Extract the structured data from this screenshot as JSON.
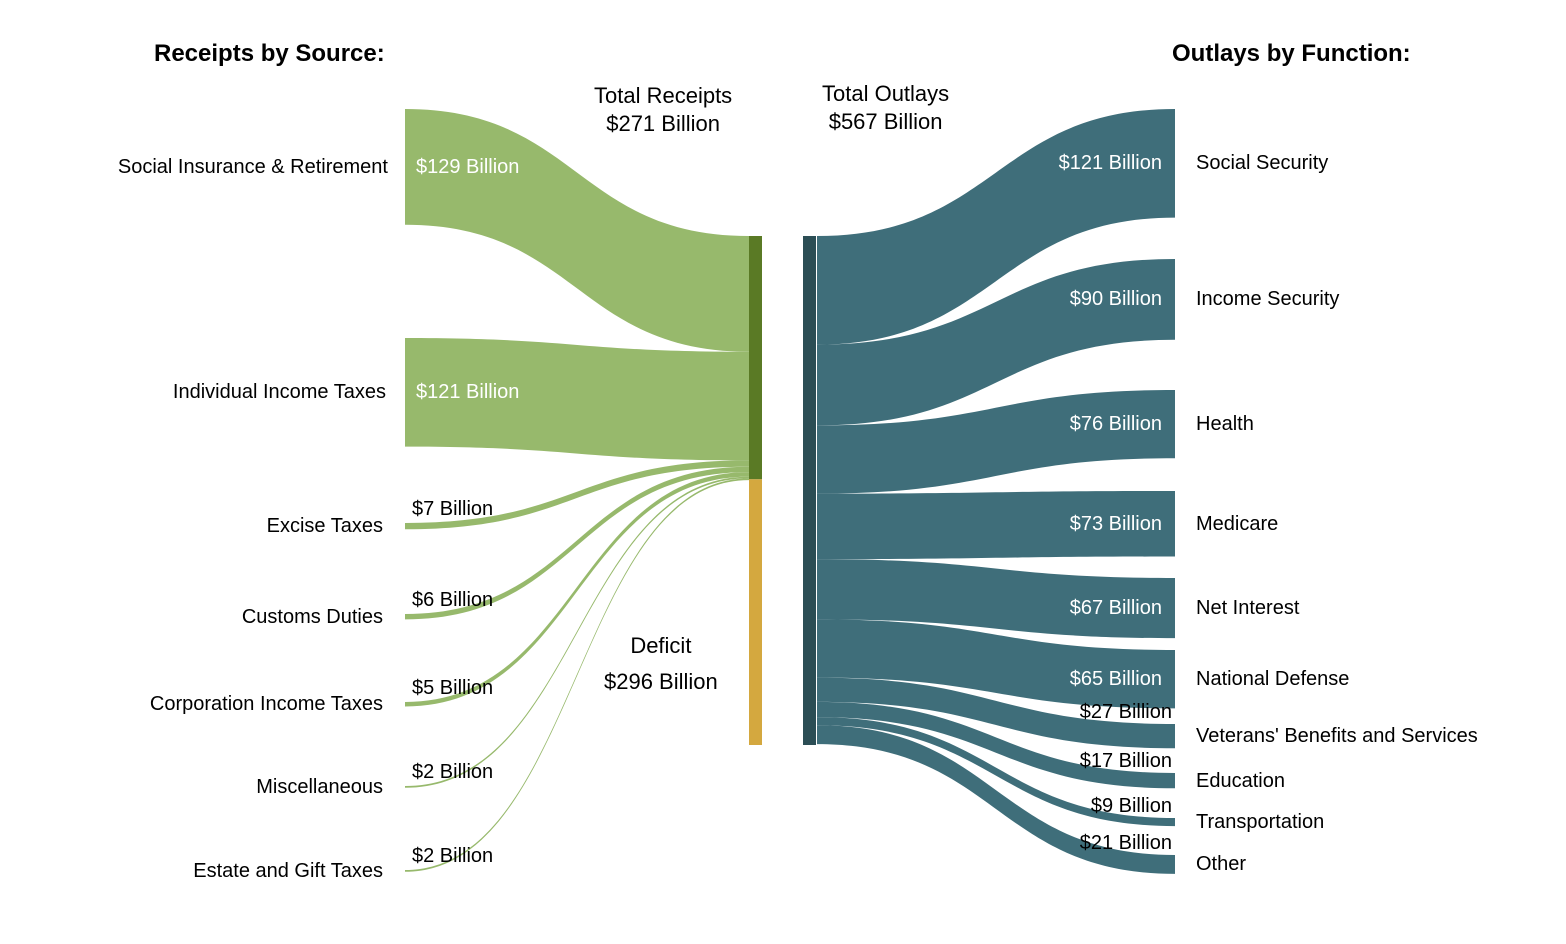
{
  "chart_data": {
    "type": "sankey",
    "receipts_title": "Receipts by Source:",
    "outlays_title": "Outlays by Function:",
    "total_receipts": {
      "label": "Total Receipts",
      "value": "$271 Billion",
      "amount": 271
    },
    "total_outlays": {
      "label": "Total Outlays",
      "value": "$567 Billion",
      "amount": 567
    },
    "deficit": {
      "label": "Deficit",
      "value": "$296 Billion",
      "amount": 296
    },
    "receipts": [
      {
        "name": "Social Insurance & Retirement",
        "label": "$129 Billion",
        "value": 129
      },
      {
        "name": "Individual Income Taxes",
        "label": "$121 Billion",
        "value": 121
      },
      {
        "name": "Excise Taxes",
        "label": "$7 Billion",
        "value": 7
      },
      {
        "name": "Customs Duties",
        "label": "$6 Billion",
        "value": 6
      },
      {
        "name": "Corporation Income Taxes",
        "label": "$5 Billion",
        "value": 5
      },
      {
        "name": "Miscellaneous",
        "label": "$2 Billion",
        "value": 2
      },
      {
        "name": "Estate and Gift Taxes",
        "label": "$2 Billion",
        "value": 2
      }
    ],
    "outlays": [
      {
        "name": "Social Security",
        "label": "$121 Billion",
        "value": 121
      },
      {
        "name": "Income Security",
        "label": "$90 Billion",
        "value": 90
      },
      {
        "name": "Health",
        "label": "$76 Billion",
        "value": 76
      },
      {
        "name": "Medicare",
        "label": "$73 Billion",
        "value": 73
      },
      {
        "name": "Net Interest",
        "label": "$67 Billion",
        "value": 67
      },
      {
        "name": "National Defense",
        "label": "$65 Billion",
        "value": 65
      },
      {
        "name": "Veterans' Benefits and Services",
        "label": "$27 Billion",
        "value": 27
      },
      {
        "name": "Education",
        "label": "$17 Billion",
        "value": 17
      },
      {
        "name": "Transportation",
        "label": "$9 Billion",
        "value": 9
      },
      {
        "name": "Other",
        "label": "$21 Billion",
        "value": 21
      }
    ],
    "colors": {
      "receipts_flow": "#97b96c",
      "receipts_bar": "#5a7a25",
      "deficit_bar": "#d4a83f",
      "outlays_flow": "#3f6e7a",
      "outlays_bar": "#2c4e55"
    }
  }
}
